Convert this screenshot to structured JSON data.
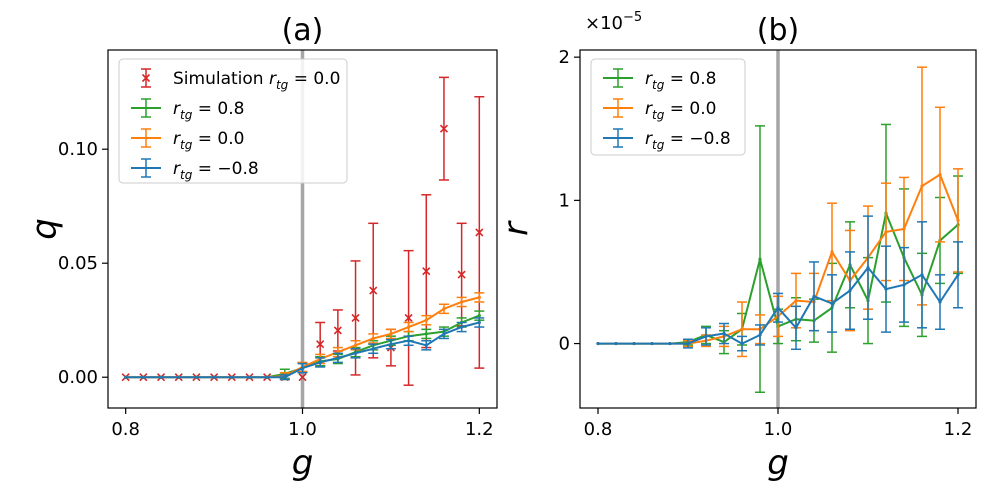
{
  "chart_data": [
    {
      "type": "line",
      "title": "(a)",
      "xlabel": "g",
      "ylabel": "q",
      "xlim": [
        0.78,
        1.22
      ],
      "ylim": [
        -0.0135,
        0.1435
      ],
      "xticks": [
        0.8,
        1.0,
        1.2
      ],
      "xtick_labels": [
        "0.8",
        "1.0",
        "1.2"
      ],
      "yticks": [
        0.0,
        0.05,
        0.1
      ],
      "ytick_labels": [
        "0.00",
        "0.05",
        "0.10"
      ],
      "vline": 1.0,
      "legend": {
        "position": "top-left",
        "entries": [
          {
            "prefix": "Simulation ",
            "var": "r",
            "sub": "tg",
            "value": " = 0.0"
          },
          {
            "prefix": "",
            "var": "r",
            "sub": "tg",
            "value": " = 0.8"
          },
          {
            "prefix": "",
            "var": "r",
            "sub": "tg",
            "value": " = 0.0"
          },
          {
            "prefix": "",
            "var": "r",
            "sub": "tg",
            "value": " = −0.8"
          }
        ]
      },
      "x": [
        0.8,
        0.82,
        0.84,
        0.86,
        0.88,
        0.9,
        0.92,
        0.94,
        0.96,
        0.98,
        1.0,
        1.02,
        1.04,
        1.06,
        1.08,
        1.1,
        1.12,
        1.14,
        1.16,
        1.18,
        1.2
      ],
      "series": [
        {
          "name": "Simulation r_tg = 0.0",
          "color": "#d62728",
          "style": "markers",
          "values": [
            0,
            0,
            0,
            0,
            0,
            0,
            0,
            0,
            0,
            0,
            0,
            0.0145,
            0.0205,
            0.026,
            0.038,
            0.013,
            0.026,
            0.0465,
            0.109,
            0.045,
            0.0635
          ],
          "err": [
            0,
            0,
            0,
            0,
            0,
            0,
            0,
            0,
            0,
            0,
            0,
            0.0095,
            0.009,
            0.025,
            0.0295,
            0.008,
            0.0295,
            0.0335,
            0.0225,
            0.0225,
            0.0595
          ]
        },
        {
          "name": "r_tg = 0.8",
          "color": "#2ca02c",
          "style": "line",
          "values": [
            0,
            0,
            0,
            0,
            0,
            0,
            0,
            0,
            0,
            0.0015,
            0.004,
            0.007,
            0.008,
            0.011,
            0.014,
            0.016,
            0.018,
            0.019,
            0.02,
            0.024,
            0.027
          ],
          "err": [
            0,
            0,
            0,
            0,
            0,
            0,
            0,
            0,
            0,
            0.002,
            0.002,
            0.002,
            0.002,
            0.002,
            0.002,
            0.002,
            0.002,
            0.002,
            0.002,
            0.002,
            0.002
          ]
        },
        {
          "name": "r_tg = 0.0",
          "color": "#ff7f0e",
          "style": "line",
          "values": [
            0,
            0,
            0,
            0,
            0,
            0,
            0,
            0,
            0,
            0.0005,
            0.0045,
            0.008,
            0.011,
            0.014,
            0.017,
            0.019,
            0.022,
            0.025,
            0.03,
            0.033,
            0.035
          ],
          "err": [
            0,
            0,
            0,
            0,
            0,
            0,
            0,
            0,
            0,
            0.0015,
            0.002,
            0.002,
            0.002,
            0.002,
            0.002,
            0.002,
            0.002,
            0.002,
            0.002,
            0.002,
            0.002
          ]
        },
        {
          "name": "r_tg = −0.8",
          "color": "#1f77b4",
          "style": "line",
          "values": [
            0,
            0,
            0,
            0,
            0,
            0,
            0,
            0,
            0,
            0,
            0.004,
            0.0065,
            0.0085,
            0.0105,
            0.0125,
            0.0145,
            0.016,
            0.014,
            0.019,
            0.022,
            0.024
          ],
          "err": [
            0,
            0,
            0,
            0,
            0,
            0,
            0,
            0,
            0,
            0.001,
            0.002,
            0.002,
            0.002,
            0.002,
            0.002,
            0.002,
            0.002,
            0.002,
            0.002,
            0.002,
            0.002
          ]
        }
      ]
    },
    {
      "type": "line",
      "title": "(b)",
      "xlabel": "g",
      "ylabel": "r",
      "scale_label": "×10−5",
      "xlim": [
        0.78,
        1.22
      ],
      "ylim": [
        -0.45,
        2.05
      ],
      "xticks": [
        0.8,
        1.0,
        1.2
      ],
      "xtick_labels": [
        "0.8",
        "1.0",
        "1.2"
      ],
      "yticks": [
        0,
        1,
        2
      ],
      "ytick_labels": [
        "0",
        "1",
        "2"
      ],
      "vline": 1.0,
      "legend": {
        "position": "top-left",
        "entries": [
          {
            "prefix": "",
            "var": "r",
            "sub": "tg",
            "value": " = 0.8"
          },
          {
            "prefix": "",
            "var": "r",
            "sub": "tg",
            "value": " = 0.0"
          },
          {
            "prefix": "",
            "var": "r",
            "sub": "tg",
            "value": " = −0.8"
          }
        ]
      },
      "x": [
        0.8,
        0.82,
        0.84,
        0.86,
        0.88,
        0.9,
        0.92,
        0.94,
        0.96,
        0.98,
        1.0,
        1.02,
        1.04,
        1.06,
        1.08,
        1.1,
        1.12,
        1.14,
        1.16,
        1.18,
        1.2
      ],
      "series": [
        {
          "name": "r_tg = 0.8",
          "color": "#2ca02c",
          "style": "line",
          "values": [
            0,
            0,
            0,
            0,
            0,
            0.01,
            0.06,
            0.01,
            0.1,
            0.59,
            0.12,
            0.17,
            0.16,
            0.25,
            0.55,
            0.3,
            0.91,
            0.6,
            0.34,
            0.72,
            0.83
          ],
          "err": [
            0,
            0,
            0,
            0,
            0,
            0.02,
            0.06,
            0.08,
            0.11,
            0.93,
            0.12,
            0.15,
            0.15,
            0.31,
            0.3,
            0.3,
            0.62,
            0.48,
            0.29,
            0.3,
            0.34
          ]
        },
        {
          "name": "r_tg = 0.0",
          "color": "#ff7f0e",
          "style": "line",
          "values": [
            0,
            0,
            0,
            0,
            0,
            0,
            0.02,
            0.05,
            0.1,
            0.1,
            0.19,
            0.3,
            0.29,
            0.64,
            0.44,
            0.6,
            0.78,
            0.8,
            1.1,
            1.18,
            0.86
          ],
          "err": [
            0,
            0,
            0,
            0,
            0,
            0.02,
            0.04,
            0.07,
            0.19,
            0.1,
            0.14,
            0.19,
            0.2,
            0.34,
            0.35,
            0.36,
            0.34,
            0.36,
            0.83,
            0.47,
            0.36
          ]
        },
        {
          "name": "r_tg = −0.8",
          "color": "#1f77b4",
          "style": "line",
          "values": [
            0,
            0,
            0,
            0,
            0,
            0,
            0.05,
            0.07,
            0,
            0.06,
            0.25,
            0.11,
            0.33,
            0.28,
            0.37,
            0.53,
            0.38,
            0.41,
            0.48,
            0.29,
            0.48
          ],
          "err": [
            0,
            0,
            0,
            0,
            0,
            0.03,
            0.06,
            0.07,
            0.05,
            0.07,
            0.1,
            0.15,
            0.24,
            0.2,
            0.27,
            0.36,
            0.3,
            0.26,
            0.37,
            0.19,
            0.23
          ]
        }
      ]
    }
  ]
}
